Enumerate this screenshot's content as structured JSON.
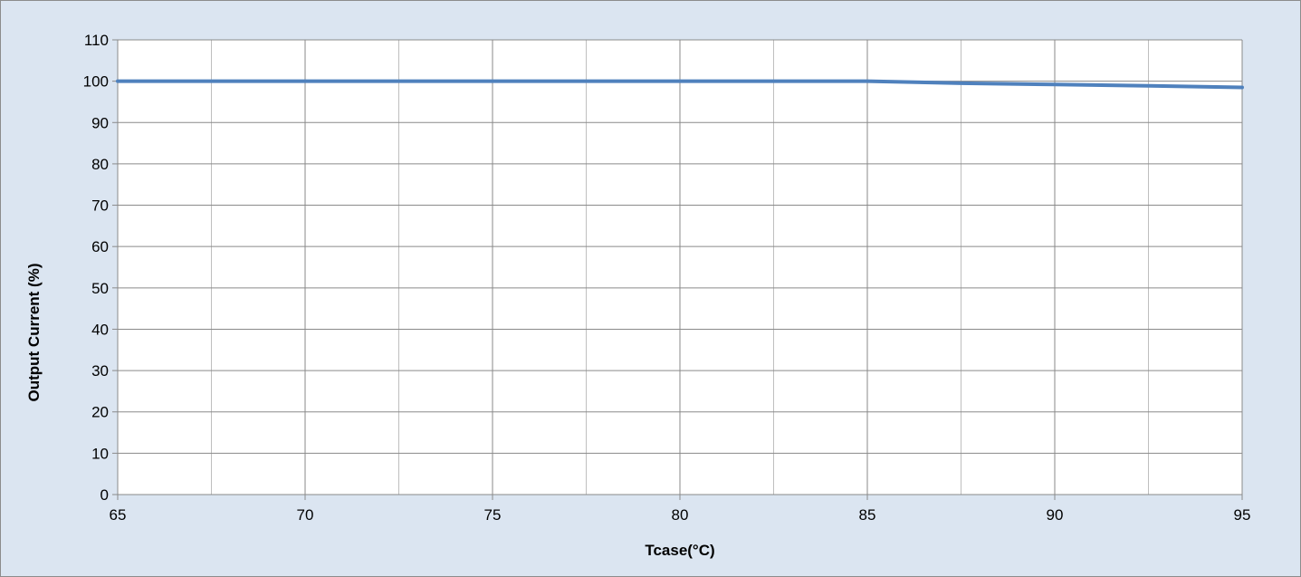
{
  "chart_data": {
    "type": "line",
    "title": "",
    "xlabel": "Tcase(°C)",
    "ylabel": "Output Current (%)",
    "xlim": [
      65,
      95
    ],
    "ylim": [
      0,
      110
    ],
    "x_major_ticks": [
      65,
      70,
      75,
      80,
      85,
      90,
      95
    ],
    "x_minor_ticks": [
      67.5,
      72.5,
      77.5,
      82.5,
      87.5,
      92.5
    ],
    "y_ticks": [
      0,
      10,
      20,
      30,
      40,
      50,
      60,
      70,
      80,
      90,
      100,
      110
    ],
    "grid": true,
    "legend": "none",
    "series": [
      {
        "color": "#4f81bd",
        "x": [
          65,
          70,
          75,
          80,
          85,
          87.5,
          90,
          92.5,
          95
        ],
        "values": [
          100,
          100,
          100,
          100,
          100,
          99.5,
          99.2,
          98.9,
          98.5
        ]
      }
    ],
    "colors": {
      "plot_background": "#ffffff",
      "chart_background": "#dbe5f1",
      "major_grid": "#8a8a8a",
      "minor_grid": "#bfbfbf"
    }
  }
}
